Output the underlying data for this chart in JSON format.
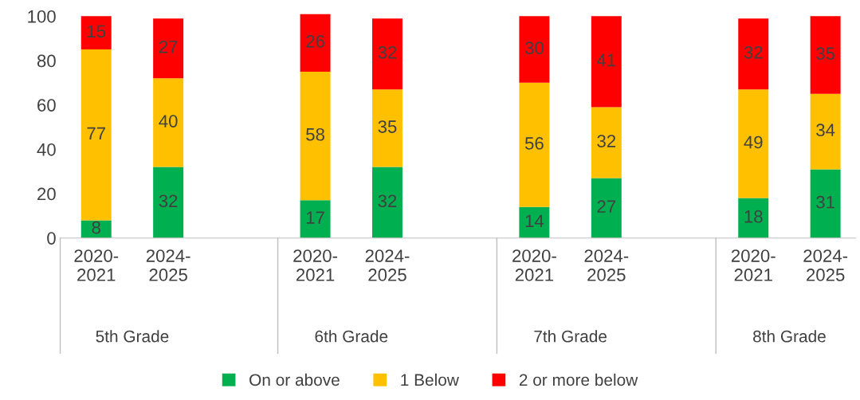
{
  "chart_data": {
    "type": "bar",
    "stacked": true,
    "categories": [
      "2020-\n2021",
      "2024-\n2025",
      "2020-\n2021",
      "2024-\n2025",
      "2020-\n2021",
      "2024-\n2025",
      "2020-\n2021",
      "2024-\n2025"
    ],
    "series": [
      {
        "name": "On or above",
        "color": "#00b050",
        "values": [
          8,
          32,
          17,
          32,
          14,
          27,
          18,
          31
        ]
      },
      {
        "name": "1 Below",
        "color": "#ffc000",
        "values": [
          77,
          40,
          58,
          35,
          56,
          32,
          49,
          34
        ]
      },
      {
        "name": "2 or more below",
        "color": "#ff0000",
        "values": [
          15,
          27,
          26,
          32,
          30,
          41,
          32,
          35
        ]
      }
    ],
    "annotations": [
      "5th Grade",
      "6th Grade",
      "7th Grade",
      "8th Grade"
    ],
    "ylim": [
      0,
      101
    ],
    "yticks": [
      0,
      20,
      40,
      60,
      80,
      100
    ],
    "data_labels": true,
    "grid": false,
    "legend": "bottom"
  }
}
